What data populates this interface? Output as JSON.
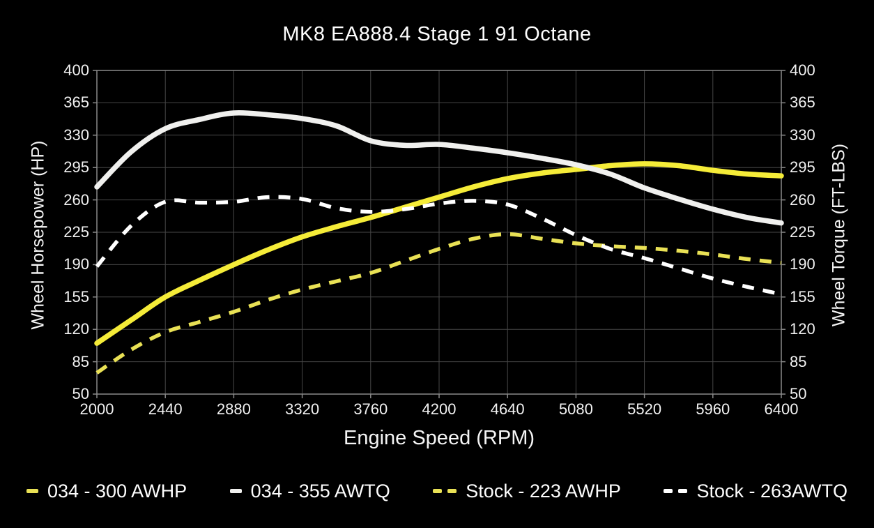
{
  "title": "MK8 EA888.4 Stage 1 91 Octane",
  "colors": {
    "background": "#000000",
    "text": "#fafafa",
    "grid": "#474747",
    "border": "#8a8a8a",
    "yellow_solid": "#f5ec38",
    "yellow_dashed": "#e9e155",
    "white_solid": "#f0f0ee",
    "white_dashed": "#ffffff"
  },
  "legend": {
    "items": [
      {
        "label": "034 - 300 AWHP",
        "color": "#e9e155",
        "style": "solid"
      },
      {
        "label": "034 - 355 AWTQ",
        "color": "#f0f0ee",
        "style": "solid"
      },
      {
        "label": "Stock - 223 AWHP",
        "color": "#e9e155",
        "style": "dashed"
      },
      {
        "label": "Stock - 263AWTQ",
        "color": "#ffffff",
        "style": "dashed"
      }
    ]
  },
  "chart_data": {
    "type": "line",
    "title": "MK8 EA888.4 Stage 1 91 Octane",
    "xlabel": "Engine Speed (RPM)",
    "ylabel_left": "Wheel Horsepower (HP)",
    "ylabel_right": "Wheel Torque (FT-LBS)",
    "xlim": [
      2000,
      6400
    ],
    "ylim": [
      50,
      400
    ],
    "x_ticks": [
      2000,
      2440,
      2880,
      3320,
      3760,
      4200,
      4640,
      5080,
      5520,
      5960,
      6400
    ],
    "y_ticks": [
      50,
      85,
      120,
      155,
      190,
      225,
      260,
      295,
      330,
      365,
      400
    ],
    "grid": true,
    "legend_position": "bottom",
    "x": [
      2000,
      2220,
      2440,
      2660,
      2880,
      3100,
      3320,
      3540,
      3760,
      3980,
      4200,
      4420,
      4640,
      4860,
      5080,
      5300,
      5520,
      5740,
      5960,
      6180,
      6400
    ],
    "series": [
      {
        "name": "034 - 300 AWHP",
        "axis": "left",
        "units": "HP",
        "peak": 300,
        "color": "#f5ec38",
        "style": "solid",
        "values": [
          105,
          130,
          155,
          173,
          190,
          206,
          220,
          231,
          241,
          252,
          263,
          274,
          283,
          289,
          293,
          297,
          299,
          297,
          292,
          288,
          286
        ]
      },
      {
        "name": "034 - 355 AWTQ",
        "axis": "right",
        "units": "FT-LBS",
        "peak": 355,
        "color": "#f0f0ee",
        "style": "solid",
        "values": [
          274,
          312,
          337,
          347,
          354,
          352,
          348,
          340,
          324,
          319,
          320,
          316,
          311,
          305,
          298,
          288,
          273,
          261,
          250,
          241,
          235
        ]
      },
      {
        "name": "Stock - 223 AWHP",
        "axis": "left",
        "units": "HP",
        "peak": 223,
        "color": "#e9e155",
        "style": "dashed",
        "values": [
          73,
          98,
          117,
          128,
          139,
          152,
          163,
          172,
          181,
          194,
          207,
          218,
          223,
          218,
          213,
          210,
          208,
          205,
          201,
          196,
          192
        ]
      },
      {
        "name": "Stock - 263AWTQ",
        "axis": "right",
        "units": "FT-LBS",
        "peak": 263,
        "color": "#ffffff",
        "style": "dashed",
        "values": [
          188,
          232,
          258,
          257,
          258,
          263,
          261,
          251,
          247,
          250,
          256,
          259,
          255,
          240,
          222,
          207,
          197,
          186,
          175,
          166,
          158
        ]
      }
    ]
  }
}
